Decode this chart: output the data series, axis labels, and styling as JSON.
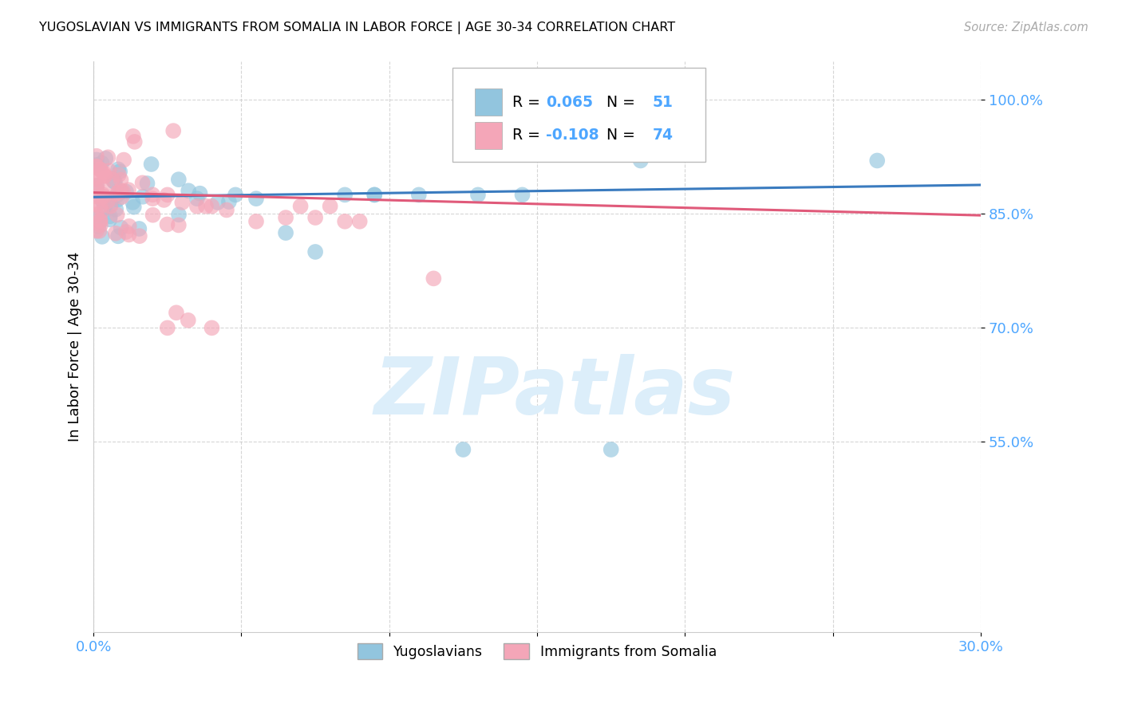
{
  "title": "YUGOSLAVIAN VS IMMIGRANTS FROM SOMALIA IN LABOR FORCE | AGE 30-34 CORRELATION CHART",
  "source": "Source: ZipAtlas.com",
  "ylabel": "In Labor Force | Age 30-34",
  "xlim": [
    0.0,
    0.3
  ],
  "ylim": [
    0.3,
    1.05
  ],
  "xticks": [
    0.0,
    0.05,
    0.1,
    0.15,
    0.2,
    0.25,
    0.3
  ],
  "xticklabels": [
    "0.0%",
    "",
    "",
    "",
    "",
    "",
    "30.0%"
  ],
  "yticks": [
    0.55,
    0.7,
    0.85,
    1.0
  ],
  "yticklabels": [
    "55.0%",
    "70.0%",
    "85.0%",
    "100.0%"
  ],
  "blue_R": 0.065,
  "blue_N": 51,
  "pink_R": -0.108,
  "pink_N": 74,
  "blue_color": "#92c5de",
  "pink_color": "#f4a6b8",
  "blue_line_color": "#3a7bbf",
  "pink_line_color": "#e05a7a",
  "axis_color": "#4da6ff",
  "watermark": "ZIPatlas",
  "watermark_color": "#dceefa",
  "legend_text_color": "#1a1a2e",
  "legend_value_color": "#3a7bbf",
  "legend_pink_value_color": "#e05a7a"
}
